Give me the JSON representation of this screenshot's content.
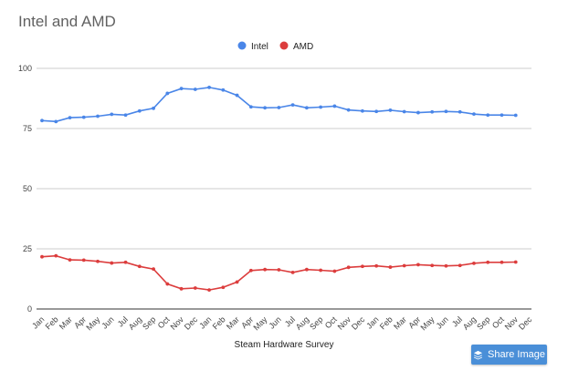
{
  "chart_data": {
    "type": "line",
    "title": "Intel and AMD",
    "xlabel": "Steam Hardware Survey",
    "ylabel": "",
    "ylim": [
      0,
      100
    ],
    "yticks": [
      0,
      25,
      50,
      75,
      100
    ],
    "grid": true,
    "legend_position": "top-center",
    "categories": [
      "Jan",
      "Feb",
      "Mar",
      "Apr",
      "May",
      "Jun",
      "Jul",
      "Aug",
      "Sep",
      "Oct",
      "Nov",
      "Dec",
      "Jan",
      "Feb",
      "Mar",
      "Apr",
      "May",
      "Jun",
      "Jul",
      "Aug",
      "Sep",
      "Oct",
      "Nov",
      "Dec",
      "Jan",
      "Feb",
      "Mar",
      "Apr",
      "May",
      "Jun",
      "Jul",
      "Aug",
      "Sep",
      "Oct",
      "Nov",
      "Dec"
    ],
    "series": [
      {
        "name": "Intel",
        "color": "#4a86e8",
        "values": [
          78.3,
          77.9,
          79.5,
          79.7,
          80.1,
          80.9,
          80.6,
          82.3,
          83.4,
          89.6,
          91.6,
          91.3,
          92.1,
          91.0,
          88.8,
          84.0,
          83.6,
          83.7,
          84.8,
          83.6,
          83.9,
          84.3,
          82.7,
          82.3,
          82.1,
          82.6,
          82.0,
          81.6,
          81.9,
          82.1,
          81.9,
          81.0,
          80.6,
          80.6,
          80.5,
          null
        ]
      },
      {
        "name": "AMD",
        "color": "#dc3d3d",
        "values": [
          21.7,
          22.1,
          20.4,
          20.3,
          19.8,
          19.1,
          19.4,
          17.7,
          16.6,
          10.4,
          8.4,
          8.7,
          7.9,
          9.0,
          11.2,
          16.0,
          16.4,
          16.3,
          15.2,
          16.4,
          16.1,
          15.7,
          17.3,
          17.7,
          17.9,
          17.4,
          18.0,
          18.4,
          18.1,
          17.9,
          18.1,
          19.0,
          19.4,
          19.4,
          19.5,
          null
        ]
      }
    ]
  },
  "share_button": {
    "label": "Share Image",
    "icon": "layers-icon"
  }
}
